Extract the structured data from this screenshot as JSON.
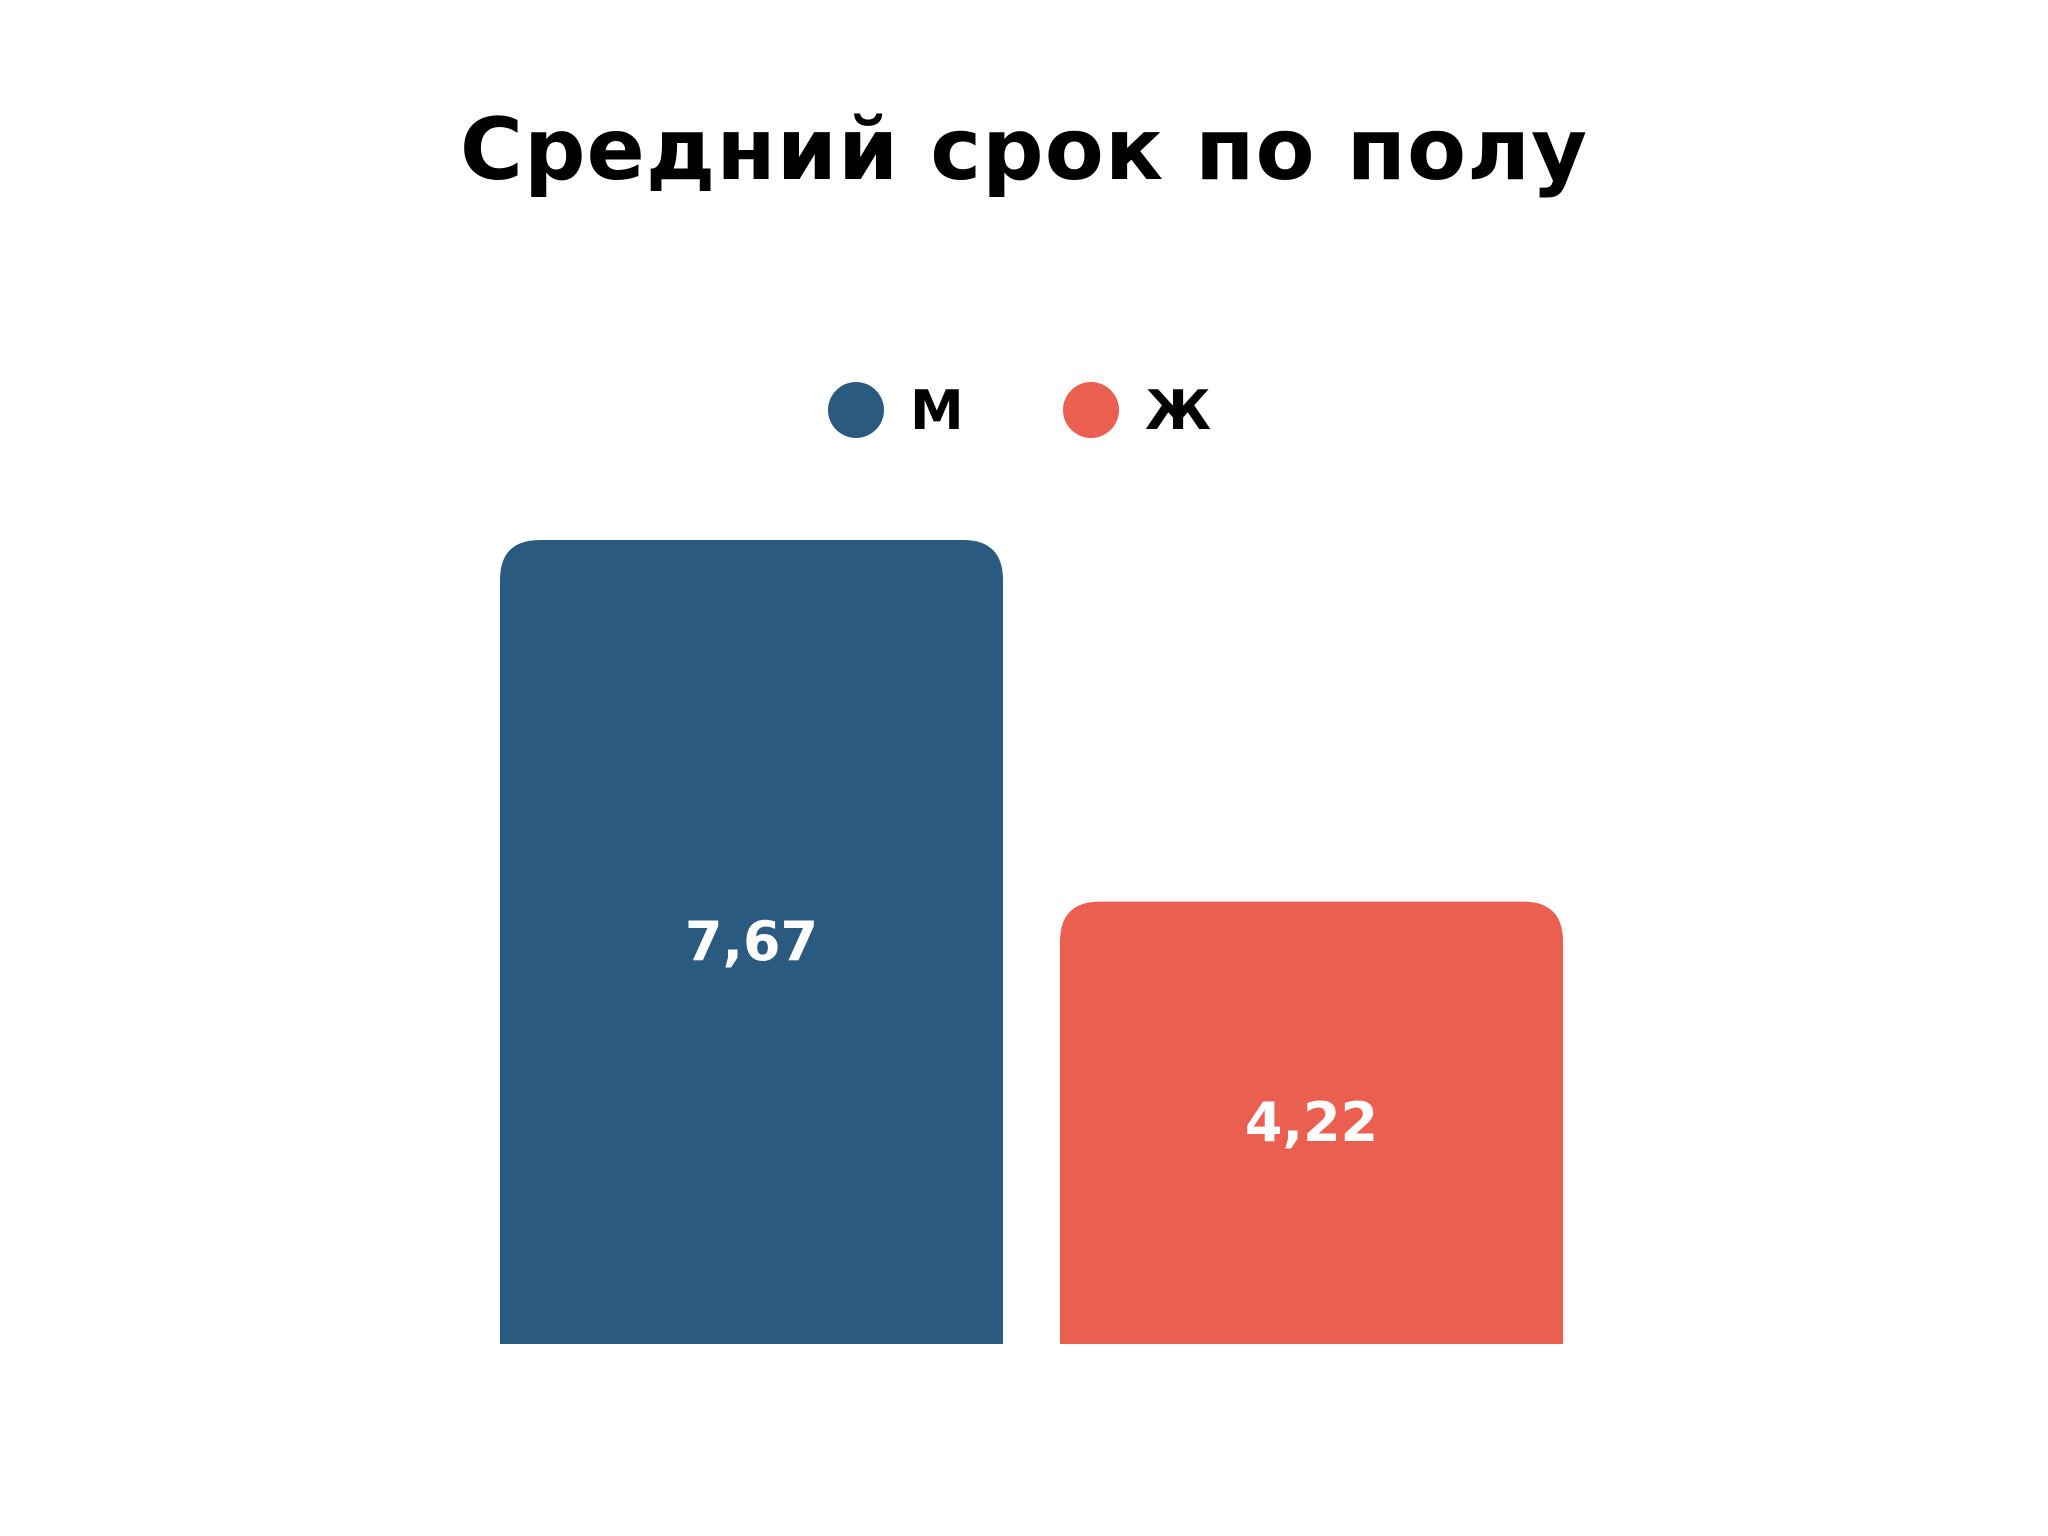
{
  "chart_data": {
    "type": "bar",
    "title": "Средний срок по полу",
    "categories": [
      "М",
      "Ж"
    ],
    "values": [
      7.67,
      4.22
    ],
    "value_labels": [
      "7,67",
      "4,22"
    ],
    "colors": [
      "#2b5a80",
      "#eb5f51"
    ],
    "legend": [
      {
        "label": "М",
        "color": "#2b5a80"
      },
      {
        "label": "Ж",
        "color": "#eb5f51"
      }
    ],
    "legend_position": "top-center",
    "xlabel": "",
    "ylabel": "",
    "ylim": [
      0,
      7.67
    ],
    "grid": false
  }
}
